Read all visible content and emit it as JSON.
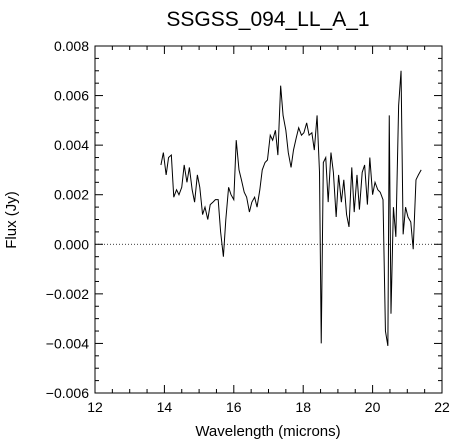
{
  "chart_data": {
    "type": "line",
    "title": "SSGSS_094_LL_A_1",
    "xlabel": "Wavelength (microns)",
    "ylabel": "Flux (Jy)",
    "xlim": [
      12,
      22
    ],
    "ylim": [
      -0.006,
      0.008
    ],
    "xticks": [
      12,
      14,
      16,
      18,
      20,
      22
    ],
    "yticks": [
      -0.006,
      -0.004,
      -0.002,
      0.0,
      0.002,
      0.004,
      0.006,
      0.008
    ],
    "xtick_labels": [
      "12",
      "14",
      "16",
      "18",
      "20",
      "22"
    ],
    "ytick_labels": [
      "−0.006",
      "−0.004",
      "−0.002",
      "0.000",
      "0.002",
      "0.004",
      "0.006",
      "0.008"
    ],
    "zero_line": "dotted",
    "grid": false,
    "series": [
      {
        "x": [
          13.9,
          13.97,
          14.05,
          14.12,
          14.2,
          14.27,
          14.35,
          14.42,
          14.5,
          14.57,
          14.65,
          14.72,
          14.8,
          14.87,
          14.95,
          15.02,
          15.1,
          15.17,
          15.25,
          15.32,
          15.4,
          15.47,
          15.55,
          15.62,
          15.7,
          15.77,
          15.85,
          15.92,
          16.0,
          16.07,
          16.15,
          16.22,
          16.3,
          16.37,
          16.45,
          16.52,
          16.6,
          16.67,
          16.75,
          16.82,
          16.9,
          16.97,
          17.05,
          17.12,
          17.2,
          17.27,
          17.35,
          17.42,
          17.5,
          17.57,
          17.65,
          17.72,
          17.8,
          17.87,
          17.95,
          18.02,
          18.1,
          18.17,
          18.25,
          18.32,
          18.4,
          18.47,
          18.52,
          18.58,
          18.65,
          18.72,
          18.8,
          18.87,
          18.95,
          19.02,
          19.1,
          19.17,
          19.25,
          19.32,
          19.4,
          19.47,
          19.55,
          19.62,
          19.7,
          19.77,
          19.85,
          19.92,
          20.0,
          20.07,
          20.15,
          20.22,
          20.3,
          20.37,
          20.44,
          20.48,
          20.53,
          20.6,
          20.67,
          20.75,
          20.82,
          20.88,
          20.95,
          21.02,
          21.1,
          21.17,
          21.25,
          21.32,
          21.4
        ],
        "y": [
          0.0032,
          0.0037,
          0.0028,
          0.0035,
          0.0036,
          0.0019,
          0.0022,
          0.002,
          0.0023,
          0.0032,
          0.0025,
          0.0031,
          0.0022,
          0.0017,
          0.0028,
          0.0023,
          0.0012,
          0.0015,
          0.001,
          0.0016,
          0.0017,
          0.0018,
          0.0018,
          0.0005,
          -0.0005,
          0.001,
          0.0023,
          0.002,
          0.0018,
          0.0042,
          0.003,
          0.0026,
          0.0021,
          0.0019,
          0.0013,
          0.0017,
          0.0019,
          0.0015,
          0.0022,
          0.003,
          0.0033,
          0.0034,
          0.0044,
          0.0042,
          0.0046,
          0.0036,
          0.0064,
          0.0052,
          0.0046,
          0.0037,
          0.0031,
          0.0038,
          0.0043,
          0.0047,
          0.0044,
          0.0045,
          0.0049,
          0.0044,
          0.0045,
          0.0038,
          0.0052,
          0.0029,
          -0.004,
          0.0033,
          0.0035,
          0.0017,
          0.0037,
          0.0029,
          0.0011,
          0.0028,
          0.0017,
          0.0026,
          0.0012,
          0.0007,
          0.0031,
          0.0013,
          0.0028,
          0.0014,
          0.0029,
          0.0032,
          0.0016,
          0.0035,
          0.002,
          0.0025,
          0.0022,
          0.0021,
          0.0018,
          -0.0035,
          -0.0041,
          0.0052,
          -0.0028,
          0.0015,
          0.0003,
          0.0056,
          0.007,
          0.0004,
          0.0015,
          0.0011,
          0.0009,
          -0.0002,
          0.0026,
          0.0028,
          0.003
        ]
      }
    ]
  }
}
